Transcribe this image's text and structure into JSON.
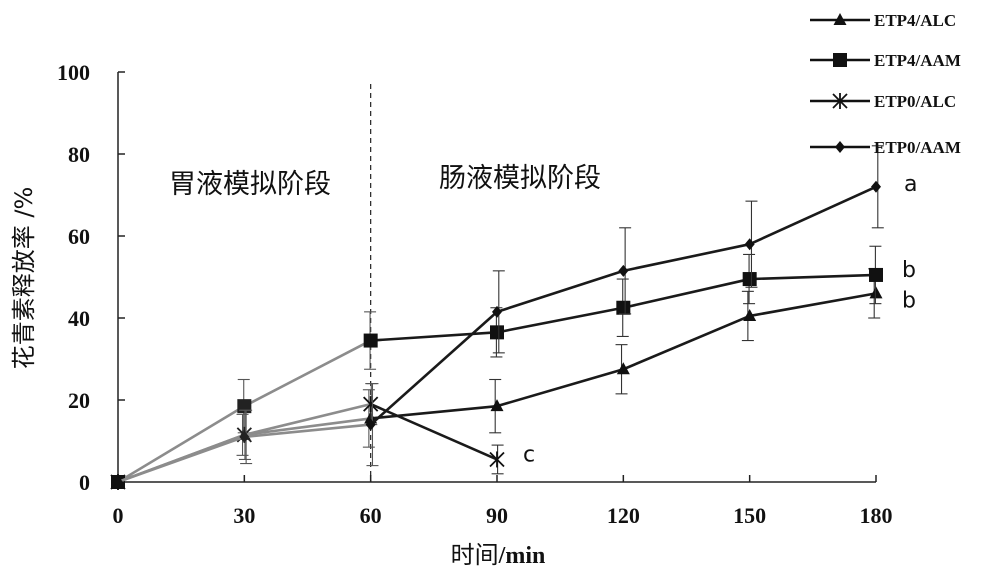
{
  "chart_data": {
    "type": "line",
    "xlabel_cn": "时间",
    "xlabel_unit": "/min",
    "ylabel": "花青素释放率 /%",
    "x": [
      0,
      30,
      60,
      90,
      120,
      150,
      180
    ],
    "xticks": [
      "0",
      "30",
      "60",
      "90",
      "120",
      "150",
      "180"
    ],
    "yticks": [
      "0",
      "20",
      "40",
      "60",
      "80",
      "100"
    ],
    "xlim": [
      0,
      180
    ],
    "ylim": [
      0,
      100
    ],
    "grid": false,
    "legend_position": "top-right",
    "phase_divider_x": 60,
    "phase_labels": [
      "胃液模拟阶段",
      "肠液模拟阶段"
    ],
    "colors": {
      "gastric": "#8c8c8c",
      "intestinal": "#1a1a1a"
    },
    "series": [
      {
        "name": "ETP4/ALC",
        "marker": "triangle",
        "x": [
          0,
          30,
          60,
          90,
          120,
          150,
          180
        ],
        "y": [
          0,
          11.5,
          15.5,
          18.5,
          27.5,
          40.5,
          46
        ],
        "err": [
          0,
          5,
          7,
          6.5,
          6,
          6,
          6
        ],
        "sig": "b"
      },
      {
        "name": "ETP4/AAM",
        "marker": "square",
        "x": [
          0,
          30,
          60,
          90,
          120,
          150,
          180
        ],
        "y": [
          0,
          18.5,
          34.5,
          36.5,
          42.5,
          49.5,
          50.5
        ],
        "err": [
          0,
          6.5,
          7,
          6,
          7,
          6,
          7
        ],
        "sig": "b"
      },
      {
        "name": "ETP0/ALC",
        "marker": "star",
        "x": [
          0,
          30,
          60,
          90
        ],
        "y": [
          0,
          11.5,
          19,
          5.5
        ],
        "err": [
          0,
          6,
          5,
          3.5
        ],
        "sig": "c"
      },
      {
        "name": "ETP0/AAM",
        "marker": "diamond",
        "x": [
          0,
          30,
          60,
          90,
          120,
          150,
          180
        ],
        "y": [
          0,
          11,
          14,
          41.5,
          51.5,
          58,
          72
        ],
        "err": [
          0,
          6.5,
          10,
          10,
          10.5,
          10.5,
          10
        ],
        "sig": "a"
      }
    ]
  }
}
